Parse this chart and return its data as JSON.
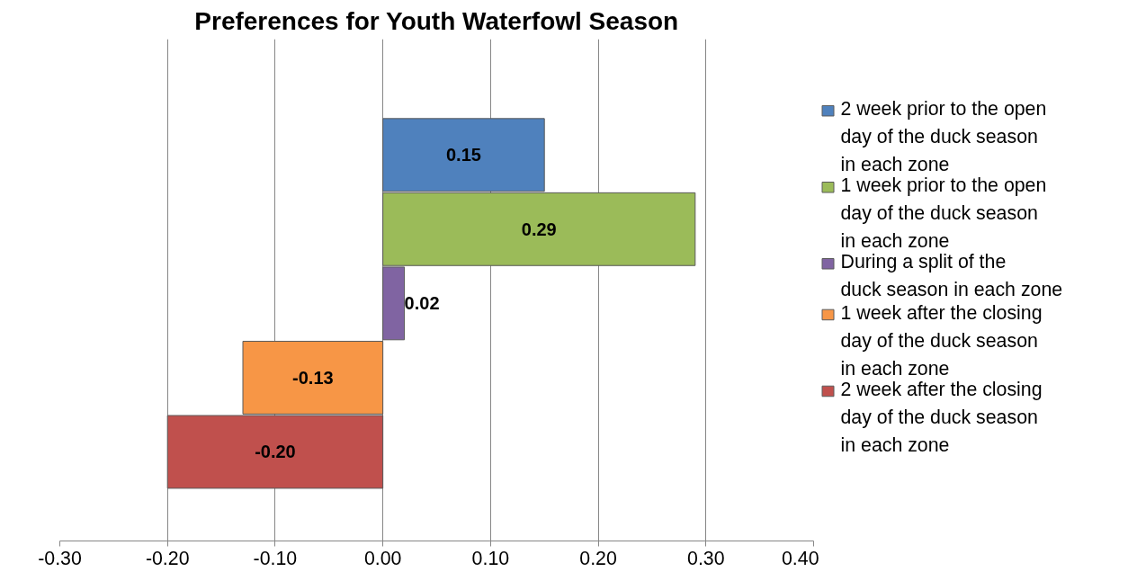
{
  "chart_data": {
    "type": "bar",
    "orientation": "horizontal",
    "title": "Preferences for Youth Waterfowl Season",
    "categories": [
      null
    ],
    "series": [
      {
        "name": "2 week prior to the open day of the duck season in each zone",
        "color": "#4f81bd",
        "values": [
          0.15
        ]
      },
      {
        "name": "1 week prior to the open day of the duck season in each zone",
        "color": "#9bbb59",
        "values": [
          0.29
        ]
      },
      {
        "name": "During a split of the duck season in each zone",
        "color": "#8064a2",
        "values": [
          0.02
        ]
      },
      {
        "name": "1 week after the closing day of the duck season in each zone",
        "color": "#f79646",
        "values": [
          -0.13
        ]
      },
      {
        "name": "2 week after the closing day of the duck season in each zone",
        "color": "#c0504d",
        "values": [
          -0.2
        ]
      }
    ],
    "xlim": [
      -0.3,
      0.4
    ],
    "xticks": [
      {
        "value": -0.3,
        "label": "-0.30"
      },
      {
        "value": -0.2,
        "label": "-0.20"
      },
      {
        "value": -0.1,
        "label": "-0.10"
      },
      {
        "value": 0,
        "label": "0.00"
      },
      {
        "value": 0.1,
        "label": "0.10"
      },
      {
        "value": 0.2,
        "label": "0.20"
      },
      {
        "value": 0.3,
        "label": "0.30"
      },
      {
        "value": 0.4,
        "label": "0.40"
      }
    ],
    "grid": "x",
    "legend": "right",
    "value_labels": [
      "0.15",
      "0.29",
      "0.02",
      "-0.13",
      "-0.20"
    ]
  }
}
